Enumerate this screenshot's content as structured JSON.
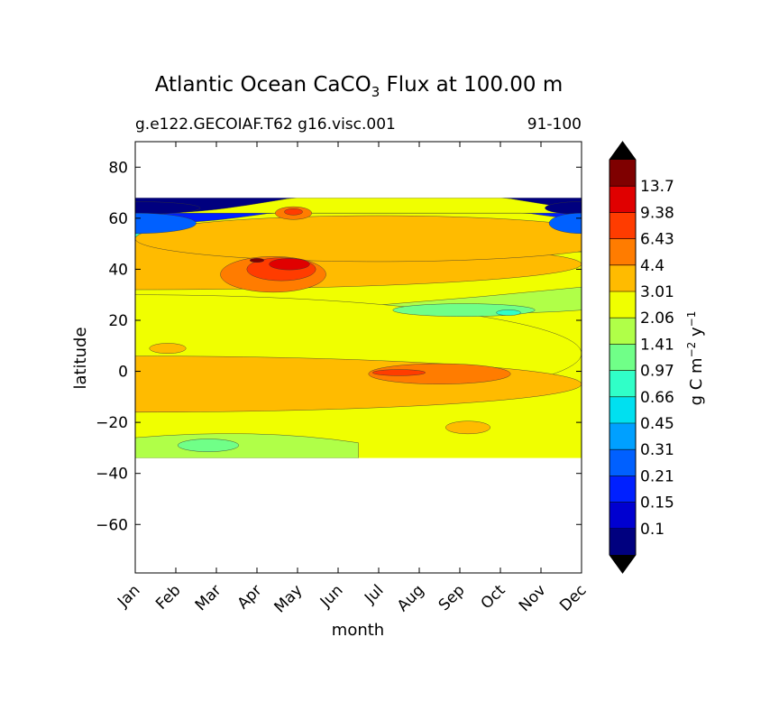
{
  "chart_data": {
    "type": "heatmap",
    "title_main": "Atlantic Ocean CaCO",
    "title_sub": "3",
    "title_rest": " Flux at 100.00 m",
    "subtitle_left": "g.e122.GECOIAF.T62 g16.visc.001",
    "subtitle_right": "91-100",
    "xlabel": "month",
    "ylabel": "latitude",
    "x_categories": [
      "Jan",
      "Feb",
      "Mar",
      "Apr",
      "May",
      "Jun",
      "Jul",
      "Aug",
      "Sep",
      "Oct",
      "Nov",
      "Dec"
    ],
    "y_ticks": [
      80,
      60,
      40,
      20,
      0,
      -20,
      -40,
      -60
    ],
    "y_tick_labels": [
      "80",
      "60",
      "40",
      "20",
      "0",
      "−20",
      "−40",
      "−60"
    ],
    "ylim": [
      -79,
      90
    ],
    "data_lat_range": [
      -34,
      68
    ],
    "colorbar": {
      "label_prefix": "g C m",
      "label_exp1": "−2",
      "label_mid": " y",
      "label_exp2": "−1",
      "levels": [
        "0.1",
        "0.15",
        "0.21",
        "0.31",
        "0.45",
        "0.66",
        "0.97",
        "1.41",
        "2.06",
        "3.01",
        "4.4",
        "6.43",
        "9.38",
        "13.7"
      ],
      "colors": [
        "#00007f",
        "#0000d0",
        "#0020ff",
        "#0060ff",
        "#00a0ff",
        "#00e0f0",
        "#30ffc8",
        "#70ff88",
        "#b0ff48",
        "#f0ff00",
        "#ffbb00",
        "#ff7c00",
        "#ff3c00",
        "#e00000",
        "#7f0000"
      ],
      "over_color": "#000000",
      "under_color": "#000000"
    },
    "blobs": [
      {
        "month": 0,
        "lat": 7,
        "w": 22,
        "h": 46,
        "level": 9
      },
      {
        "month": 0,
        "lat": -5,
        "w": 22,
        "h": 22,
        "level": 10
      },
      {
        "month": 0,
        "lat": 42,
        "w": 22,
        "h": 20,
        "level": 10
      },
      {
        "month": 6,
        "lat": 52,
        "w": 12,
        "h": 18,
        "level": 10
      },
      {
        "month": 3.4,
        "lat": 38,
        "w": 2.6,
        "h": 14,
        "level": 11
      },
      {
        "month": 3.6,
        "lat": 40,
        "w": 1.7,
        "h": 9,
        "level": 12
      },
      {
        "month": 3.8,
        "lat": 42,
        "w": 1.0,
        "h": 4.5,
        "level": 13
      },
      {
        "month": 3.0,
        "lat": 43.5,
        "w": 0.35,
        "h": 1.6,
        "level": 14
      },
      {
        "month": 3.9,
        "lat": 62,
        "w": 0.9,
        "h": 5,
        "level": 11
      },
      {
        "month": 3.9,
        "lat": 62.5,
        "w": 0.45,
        "h": 2.5,
        "level": 12
      },
      {
        "month": 7.5,
        "lat": -1,
        "w": 3.5,
        "h": 8,
        "level": 11
      },
      {
        "month": 6.5,
        "lat": -0.5,
        "w": 1.3,
        "h": 2.4,
        "level": 12
      },
      {
        "month": 0.8,
        "lat": 9,
        "w": 0.9,
        "h": 4,
        "level": 10
      },
      {
        "month": 8.2,
        "lat": -22,
        "w": 1.1,
        "h": 5,
        "level": 10
      },
      {
        "month": 8.1,
        "lat": 24,
        "w": 3.5,
        "h": 5,
        "level": 7
      },
      {
        "month": 9.2,
        "lat": 23,
        "w": 0.6,
        "h": 2.2,
        "level": 6
      },
      {
        "month": 1.8,
        "lat": -29,
        "w": 1.5,
        "h": 5,
        "level": 7
      },
      {
        "month": 0.0,
        "lat": 64,
        "w": 3.2,
        "h": 5,
        "level": 0
      },
      {
        "month": 11.0,
        "lat": 64,
        "w": 1.8,
        "h": 5,
        "level": 0
      },
      {
        "month": 0.0,
        "lat": 58,
        "w": 3.0,
        "h": 8,
        "level": 3
      },
      {
        "month": 11.0,
        "lat": 58,
        "w": 1.6,
        "h": 8,
        "level": 3
      }
    ]
  }
}
